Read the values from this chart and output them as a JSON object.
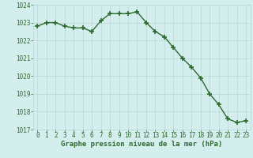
{
  "hours": [
    0,
    1,
    2,
    3,
    4,
    5,
    6,
    7,
    8,
    9,
    10,
    11,
    12,
    13,
    14,
    15,
    16,
    17,
    18,
    19,
    20,
    21,
    22,
    23
  ],
  "pressure": [
    1022.8,
    1023.0,
    1023.0,
    1022.8,
    1022.7,
    1022.7,
    1022.5,
    1023.1,
    1023.5,
    1023.5,
    1023.5,
    1023.6,
    1023.0,
    1022.5,
    1022.2,
    1021.6,
    1021.0,
    1020.5,
    1019.9,
    1019.0,
    1018.4,
    1017.6,
    1017.4,
    1017.5
  ],
  "ylim_min": 1017,
  "ylim_max": 1024,
  "yticks": [
    1017,
    1018,
    1019,
    1020,
    1021,
    1022,
    1023,
    1024
  ],
  "xticks": [
    0,
    1,
    2,
    3,
    4,
    5,
    6,
    7,
    8,
    9,
    10,
    11,
    12,
    13,
    14,
    15,
    16,
    17,
    18,
    19,
    20,
    21,
    22,
    23
  ],
  "line_color": "#2d6a2d",
  "marker_color": "#2d6a2d",
  "bg_color": "#d4eeee",
  "grid_color": "#b8d8d8",
  "xlabel": "Graphe pression niveau de la mer (hPa)",
  "xlabel_color": "#2d6a2d",
  "tick_color": "#2d6a2d",
  "line_width": 1.0,
  "marker_size": 4,
  "font_size_xlabel": 6.5,
  "font_size_ticks": 5.5
}
